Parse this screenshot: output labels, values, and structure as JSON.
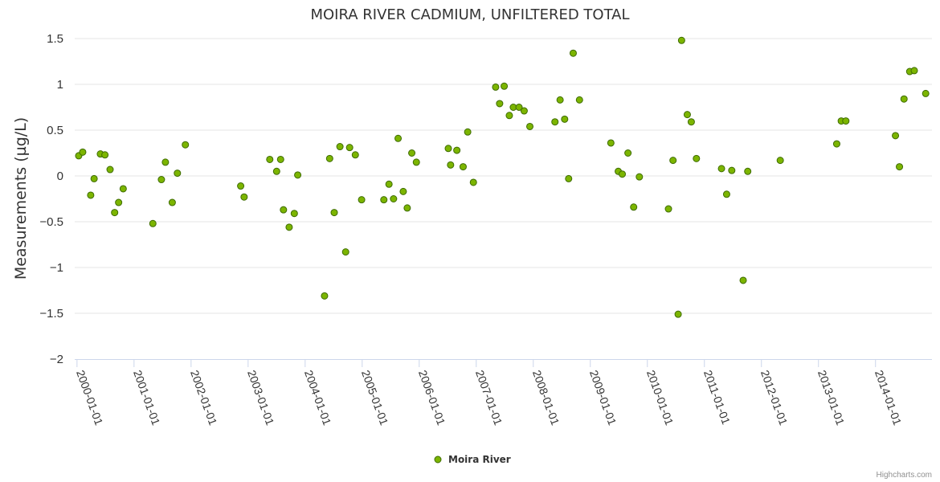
{
  "credits": "Highcharts.com",
  "colors": {
    "marker_fill": "#7cb500",
    "marker_stroke": "#3d6b00",
    "grid": "#e6e6e6",
    "axis": "#ccd6eb"
  },
  "chart_data": {
    "type": "scatter",
    "title": "MOIRA RIVER CADMIUM, UNFILTERED TOTAL",
    "ylabel": "Measurements (µg/L)",
    "xlabel": "",
    "ylim": [
      -2,
      1.5
    ],
    "yticks": [
      1.5,
      1,
      0.5,
      0,
      -0.5,
      -1,
      -1.5,
      -2
    ],
    "ytick_labels": [
      "1.5",
      "1",
      "0.5",
      "0",
      "−0.5",
      "−1",
      "−1.5",
      "−2"
    ],
    "xticks": [
      "2000-01-01",
      "2001-01-01",
      "2002-01-01",
      "2003-01-01",
      "2004-01-01",
      "2005-01-01",
      "2006-01-01",
      "2007-01-01",
      "2008-01-01",
      "2009-01-01",
      "2010-01-01",
      "2011-01-01",
      "2012-01-01",
      "2013-01-01",
      "2014-01-01"
    ],
    "xlim": [
      1999.96,
      2014.99
    ],
    "grid": true,
    "legend_position": "bottom-center",
    "series": [
      {
        "name": "Moira River",
        "points": [
          [
            2000.03,
            0.22
          ],
          [
            2000.1,
            0.26
          ],
          [
            2000.24,
            -0.21
          ],
          [
            2000.3,
            -0.03
          ],
          [
            2000.41,
            0.24
          ],
          [
            2000.49,
            0.23
          ],
          [
            2000.58,
            0.07
          ],
          [
            2000.66,
            -0.4
          ],
          [
            2000.73,
            -0.29
          ],
          [
            2000.81,
            -0.14
          ],
          [
            2001.33,
            -0.52
          ],
          [
            2001.48,
            -0.04
          ],
          [
            2001.55,
            0.15
          ],
          [
            2001.67,
            -0.29
          ],
          [
            2001.76,
            0.03
          ],
          [
            2001.9,
            0.34
          ],
          [
            2002.87,
            -0.11
          ],
          [
            2002.93,
            -0.23
          ],
          [
            2003.38,
            0.18
          ],
          [
            2003.5,
            0.05
          ],
          [
            2003.57,
            0.18
          ],
          [
            2003.62,
            -0.37
          ],
          [
            2003.72,
            -0.56
          ],
          [
            2003.81,
            -0.41
          ],
          [
            2003.87,
            0.01
          ],
          [
            2004.34,
            -1.31
          ],
          [
            2004.43,
            0.19
          ],
          [
            2004.51,
            -0.4
          ],
          [
            2004.61,
            0.32
          ],
          [
            2004.71,
            -0.83
          ],
          [
            2004.78,
            0.31
          ],
          [
            2004.88,
            0.23
          ],
          [
            2004.99,
            -0.26
          ],
          [
            2005.38,
            -0.26
          ],
          [
            2005.47,
            -0.09
          ],
          [
            2005.55,
            -0.25
          ],
          [
            2005.63,
            0.41
          ],
          [
            2005.72,
            -0.17
          ],
          [
            2005.79,
            -0.35
          ],
          [
            2005.87,
            0.25
          ],
          [
            2005.95,
            0.15
          ],
          [
            2006.51,
            0.3
          ],
          [
            2006.55,
            0.12
          ],
          [
            2006.66,
            0.28
          ],
          [
            2006.77,
            0.1
          ],
          [
            2006.85,
            0.48
          ],
          [
            2006.95,
            -0.07
          ],
          [
            2007.34,
            0.97
          ],
          [
            2007.41,
            0.79
          ],
          [
            2007.49,
            0.98
          ],
          [
            2007.58,
            0.66
          ],
          [
            2007.65,
            0.75
          ],
          [
            2007.75,
            0.75
          ],
          [
            2007.84,
            0.71
          ],
          [
            2007.94,
            0.54
          ],
          [
            2008.38,
            0.59
          ],
          [
            2008.47,
            0.83
          ],
          [
            2008.55,
            0.62
          ],
          [
            2008.62,
            -0.03
          ],
          [
            2008.7,
            1.34
          ],
          [
            2008.81,
            0.83
          ],
          [
            2009.36,
            0.36
          ],
          [
            2009.49,
            0.05
          ],
          [
            2009.56,
            0.02
          ],
          [
            2009.66,
            0.25
          ],
          [
            2009.76,
            -0.34
          ],
          [
            2009.86,
            -0.01
          ],
          [
            2010.37,
            -0.36
          ],
          [
            2010.45,
            0.17
          ],
          [
            2010.54,
            -1.51
          ],
          [
            2010.6,
            1.48
          ],
          [
            2010.7,
            0.67
          ],
          [
            2010.77,
            0.59
          ],
          [
            2010.86,
            0.19
          ],
          [
            2011.3,
            0.08
          ],
          [
            2011.39,
            -0.2
          ],
          [
            2011.48,
            0.06
          ],
          [
            2011.68,
            -1.14
          ],
          [
            2011.76,
            0.05
          ],
          [
            2012.33,
            0.17
          ],
          [
            2013.32,
            0.35
          ],
          [
            2013.4,
            0.6
          ],
          [
            2013.48,
            0.6
          ],
          [
            2014.35,
            0.44
          ],
          [
            2014.42,
            0.1
          ],
          [
            2014.5,
            0.84
          ],
          [
            2014.6,
            1.14
          ],
          [
            2014.68,
            1.15
          ],
          [
            2014.88,
            0.9
          ]
        ]
      }
    ]
  }
}
